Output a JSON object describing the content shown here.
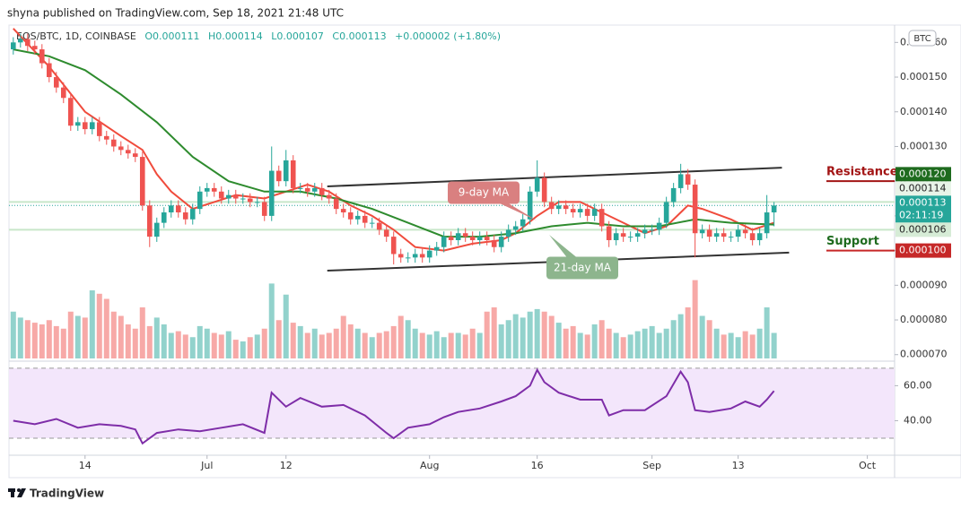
{
  "header": {
    "publisher": "shyna published on TradingView.com, Sep 18, 2021 21:48 UTC",
    "symbol": "EOS/BTC, 1D, COINBASE",
    "ohlc": [
      "O0.000111",
      "H0.000114",
      "L0.000107",
      "C0.000113"
    ],
    "change": "+0.000002 (+1.80%)",
    "currency": "BTC"
  },
  "footer": {
    "brand": "TradingView"
  },
  "chart_data": {
    "type": "candlestick",
    "up_color": "#26a69a",
    "down_color": "#ef5350",
    "xlim": [
      -0.6,
      122.8
    ],
    "xticks": [
      {
        "value": 10,
        "label": "14"
      },
      {
        "value": 27,
        "label": "Jul"
      },
      {
        "value": 38,
        "label": "12"
      },
      {
        "value": 58,
        "label": "Aug"
      },
      {
        "value": 73,
        "label": "16"
      },
      {
        "value": 89,
        "label": "Sep"
      },
      {
        "value": 101,
        "label": "13"
      },
      {
        "value": 119,
        "label": "Oct"
      }
    ],
    "ylim": [
      6.89e-05,
      0.0001637
    ],
    "yticks": [
      {
        "value": 7e-05,
        "label": "0.000070"
      },
      {
        "value": 8e-05,
        "label": "0.000080"
      },
      {
        "value": 9e-05,
        "label": "0.000090"
      },
      {
        "value": 0.0001,
        "label": "0.000100"
      },
      {
        "value": 0.00011,
        "label": "0.000110"
      },
      {
        "value": 0.00012,
        "label": "0.000120"
      },
      {
        "value": 0.00013,
        "label": "0.000130"
      },
      {
        "value": 0.00014,
        "label": "0.000140"
      },
      {
        "value": 0.00015,
        "label": "0.000150"
      },
      {
        "value": 0.00016,
        "label": "0.000160"
      }
    ],
    "open": [
      0.000158,
      0.00016,
      0.000161,
      0.000159,
      0.000158,
      0.000154,
      0.00015,
      0.000147,
      0.000144,
      0.000136,
      0.000137,
      0.000135,
      0.000137,
      0.000133,
      0.000132,
      0.00013,
      0.000129,
      0.000128,
      0.000127,
      0.000113,
      0.000104,
      0.000108,
      0.000111,
      0.000113,
      0.000111,
      0.000109,
      0.000112,
      0.000117,
      0.000118,
      0.000117,
      0.000115,
      0.000116,
      0.000115,
      0.000115,
      0.000114,
      0.000114,
      0.00011,
      0.000123,
      0.00012,
      0.000126,
      0.000118,
      0.000118,
      0.000117,
      0.000118,
      0.000116,
      0.000115,
      0.000112,
      0.000111,
      0.000109,
      0.00011,
      0.000108,
      0.000108,
      0.000106,
      0.000104,
      9.9e-05,
      9.8e-05,
      9.8e-05,
      9.9e-05,
      9.8e-05,
      0.0001,
      0.000101,
      0.000104,
      0.000103,
      0.000105,
      0.000104,
      0.000103,
      0.000104,
      0.000103,
      0.000101,
      0.000104,
      0.000106,
      0.000107,
      0.000109,
      0.000117,
      0.000121,
      0.000114,
      0.000112,
      0.000113,
      0.000112,
      0.000111,
      0.000112,
      0.00011,
      0.000112,
      0.000107,
      0.000103,
      0.000105,
      0.000104,
      0.000104,
      0.000105,
      0.000106,
      0.000106,
      0.000108,
      0.000114,
      0.000118,
      0.000122,
      0.000119,
      0.000105,
      0.000106,
      0.000104,
      0.000105,
      0.000104,
      0.000104,
      0.000106,
      0.000105,
      0.000103,
      0.000105,
      0.000111
    ],
    "high": [
      0.0001615,
      0.0001625,
      0.0001625,
      0.0001605,
      0.0001595,
      0.0001555,
      0.0001515,
      0.0001485,
      0.0001455,
      0.0001385,
      0.0001385,
      0.0001385,
      0.0001385,
      0.0001345,
      0.0001335,
      0.0001315,
      0.0001305,
      0.0001295,
      0.0001285,
      0.0001145,
      0.0001095,
      0.0001125,
      0.0001145,
      0.0001145,
      0.0001125,
      0.0001135,
      0.0001185,
      0.0001195,
      0.0001195,
      0.0001185,
      0.0001175,
      0.0001175,
      0.0001165,
      0.0001165,
      0.0001155,
      0.0001155,
      0.00013,
      0.0001245,
      0.000129,
      0.0001275,
      0.0001195,
      0.0001195,
      0.0001195,
      0.0001195,
      0.0001175,
      0.0001165,
      0.0001135,
      0.0001125,
      0.0001115,
      0.0001115,
      0.0001095,
      0.0001095,
      0.0001075,
      0.0001055,
      0.0001005,
      9.95e-05,
      0.0001005,
      0.0001005,
      0.0001015,
      0.0001025,
      0.0001055,
      0.0001055,
      0.0001065,
      0.0001065,
      0.0001055,
      0.0001055,
      0.0001055,
      0.0001045,
      0.0001055,
      0.0001075,
      0.0001085,
      0.0001105,
      0.0001185,
      0.000126,
      0.0001225,
      0.0001155,
      0.0001145,
      0.0001145,
      0.0001135,
      0.0001135,
      0.0001135,
      0.0001135,
      0.0001135,
      0.0001085,
      0.0001065,
      0.0001065,
      0.0001055,
      0.0001065,
      0.0001075,
      0.0001075,
      0.0001095,
      0.0001155,
      0.0001195,
      0.000125,
      0.0001235,
      0.0001205,
      0.0001075,
      0.0001075,
      0.0001065,
      0.0001065,
      0.0001055,
      0.0001075,
      0.0001075,
      0.0001065,
      0.0001065,
      0.000116,
      0.000114
    ],
    "low": [
      0.0001565,
      0.0001585,
      0.0001575,
      0.0001565,
      0.0001525,
      0.0001485,
      0.0001455,
      0.0001425,
      0.0001345,
      0.0001345,
      0.0001335,
      0.0001335,
      0.0001315,
      0.0001305,
      0.0001285,
      0.0001275,
      0.0001265,
      0.0001255,
      0.0001115,
      0.000101,
      0.0001025,
      0.0001065,
      0.0001095,
      0.0001095,
      0.0001075,
      0.0001075,
      0.0001105,
      0.0001155,
      0.0001155,
      0.0001135,
      0.0001135,
      0.0001135,
      0.0001135,
      0.0001125,
      0.0001125,
      0.0001085,
      0.0001085,
      0.0001185,
      0.0001185,
      0.0001165,
      0.0001165,
      0.0001155,
      0.0001155,
      0.0001145,
      0.0001135,
      0.0001105,
      0.0001095,
      0.0001075,
      0.0001075,
      0.0001065,
      0.0001065,
      0.0001045,
      0.0001025,
      9.6e-05,
      9.65e-05,
      9.65e-05,
      9.65e-05,
      9.65e-05,
      9.65e-05,
      9.85e-05,
      9.95e-05,
      0.0001015,
      0.0001015,
      0.0001025,
      0.0001015,
      0.0001015,
      0.0001015,
      9.95e-05,
      9.95e-05,
      0.0001025,
      0.0001045,
      0.0001055,
      0.0001075,
      0.0001155,
      0.0001125,
      0.0001105,
      0.0001105,
      0.0001105,
      0.0001095,
      0.0001095,
      0.0001085,
      0.0001085,
      0.0001055,
      0.000101,
      0.0001015,
      0.0001025,
      0.0001025,
      0.0001025,
      0.0001035,
      0.0001045,
      0.0001045,
      0.0001065,
      0.0001125,
      0.0001165,
      0.0001175,
      9.8e-05,
      0.0001035,
      0.0001025,
      0.0001025,
      0.0001025,
      0.0001025,
      0.0001025,
      0.0001035,
      0.0001015,
      0.0001015,
      0.0001035,
      0.000107
    ],
    "close": [
      0.00016,
      0.000161,
      0.000159,
      0.000158,
      0.000154,
      0.00015,
      0.000147,
      0.000144,
      0.000136,
      0.000137,
      0.000135,
      0.000137,
      0.000133,
      0.000132,
      0.00013,
      0.000129,
      0.000128,
      0.000127,
      0.000113,
      0.000104,
      0.000108,
      0.000111,
      0.000113,
      0.000111,
      0.000109,
      0.000112,
      0.000117,
      0.000118,
      0.000117,
      0.000115,
      0.000116,
      0.000115,
      0.000115,
      0.000114,
      0.000114,
      0.00011,
      0.000123,
      0.00012,
      0.000126,
      0.000118,
      0.000118,
      0.000117,
      0.000118,
      0.000116,
      0.000115,
      0.000112,
      0.000111,
      0.000109,
      0.00011,
      0.000108,
      0.000108,
      0.000106,
      0.000104,
      9.9e-05,
      9.8e-05,
      9.8e-05,
      9.9e-05,
      9.8e-05,
      0.0001,
      0.000101,
      0.000104,
      0.000103,
      0.000105,
      0.000104,
      0.000103,
      0.000104,
      0.000103,
      0.000101,
      0.000104,
      0.000106,
      0.000107,
      0.000109,
      0.000117,
      0.000121,
      0.000114,
      0.000112,
      0.000113,
      0.000112,
      0.000111,
      0.000112,
      0.00011,
      0.000112,
      0.000107,
      0.000103,
      0.000105,
      0.000104,
      0.000104,
      0.000105,
      0.000106,
      0.000106,
      0.000108,
      0.000114,
      0.000118,
      0.000122,
      0.000119,
      0.000105,
      0.000106,
      0.000104,
      0.000105,
      0.000104,
      0.000104,
      0.000106,
      0.000105,
      0.000103,
      0.000105,
      0.000111,
      0.000113
    ],
    "volume": {
      "ylim": [
        0,
        100
      ],
      "values": [
        55,
        48,
        45,
        42,
        40,
        45,
        38,
        35,
        55,
        50,
        48,
        80,
        76,
        70,
        55,
        50,
        40,
        35,
        60,
        38,
        48,
        40,
        30,
        32,
        28,
        25,
        38,
        35,
        30,
        28,
        32,
        22,
        20,
        25,
        28,
        35,
        88,
        45,
        75,
        42,
        38,
        30,
        35,
        28,
        30,
        35,
        50,
        40,
        35,
        30,
        25,
        30,
        32,
        38,
        50,
        45,
        35,
        30,
        28,
        32,
        25,
        30,
        30,
        28,
        35,
        30,
        55,
        60,
        40,
        45,
        52,
        48,
        55,
        58,
        55,
        50,
        42,
        35,
        38,
        30,
        28,
        40,
        45,
        35,
        30,
        25,
        28,
        32,
        35,
        38,
        30,
        35,
        45,
        52,
        60,
        92,
        50,
        45,
        35,
        28,
        30,
        25,
        32,
        28,
        35,
        60,
        30
      ]
    },
    "moving_averages": [
      {
        "name": "9-day MA",
        "color": "#f04b3c",
        "x": [
          0,
          5,
          10,
          15,
          18,
          20,
          22,
          25,
          28,
          31,
          35,
          38,
          41,
          44,
          47,
          50,
          53,
          56,
          60,
          64,
          68,
          70,
          73,
          76,
          79,
          82,
          85,
          88,
          91,
          94,
          96,
          100,
          103,
          106
        ],
        "values": [
          0.000164,
          0.000153,
          0.00014,
          0.000133,
          0.000129,
          0.000122,
          0.000117,
          0.000112,
          0.000114,
          0.000116,
          0.000115,
          0.000117,
          0.000119,
          0.000117,
          0.000113,
          0.00011,
          0.000106,
          0.000101,
          0.0001,
          0.000102,
          0.000103,
          0.000105,
          0.00011,
          0.000114,
          0.000114,
          0.000111,
          0.000108,
          0.000105,
          0.000107,
          0.000113,
          0.000112,
          0.000109,
          0.000106,
          0.000108
        ]
      },
      {
        "name": "21-day MA",
        "color": "#2e8b2e",
        "x": [
          0,
          5,
          10,
          15,
          20,
          25,
          30,
          35,
          40,
          45,
          50,
          55,
          60,
          65,
          70,
          75,
          80,
          85,
          90,
          95,
          100,
          106
        ],
        "values": [
          0.000158,
          0.000156,
          0.000152,
          0.000145,
          0.000137,
          0.000127,
          0.00012,
          0.000117,
          0.000117,
          0.000115,
          0.000112,
          0.000108,
          0.000104,
          0.000104,
          0.000105,
          0.000107,
          0.000108,
          0.000107,
          0.000107,
          0.000109,
          0.000108,
          0.0001075
        ]
      }
    ],
    "trendlines": [
      {
        "x": [
          43.75,
          107.1
        ],
        "y": [
          0.0001185,
          0.0001239
        ]
      },
      {
        "x": [
          43.75,
          108.1
        ],
        "y": [
          9.42e-05,
          9.94e-05
        ]
      }
    ],
    "levels": [
      {
        "label": "Resistance",
        "value": 0.00012,
        "value_label": "0.000120",
        "color": "#1e6b1e",
        "text_color": "#a31515"
      },
      {
        "label": "Support",
        "value": 0.0001,
        "value_label": "0.000100",
        "color": "#c62828",
        "text_color": "#1e6b1e"
      }
    ],
    "price_labels": [
      {
        "value": 0.000114,
        "label": "0.000114",
        "color": "#e8f4e8"
      },
      {
        "value": 0.000113,
        "label": "0.000113",
        "countdown": "02:11:19",
        "color": "#26a69a"
      },
      {
        "value": 0.000106,
        "label": "0.000106",
        "color": "#d6ecd6"
      }
    ],
    "rsi": {
      "color": "#7e2da8",
      "ylim": [
        9,
        73
      ],
      "bands": [
        30,
        70
      ],
      "yticks": [
        {
          "value": 40,
          "label": "40.00"
        },
        {
          "value": 60,
          "label": "60.00"
        }
      ],
      "x": [
        0,
        3,
        6,
        9,
        12,
        15,
        17,
        18,
        20,
        23,
        26,
        29,
        32,
        35,
        36,
        38,
        40,
        43,
        46,
        49,
        52,
        53,
        55,
        58,
        60,
        62,
        65,
        68,
        70,
        72,
        73,
        74,
        76,
        79,
        82,
        83,
        85,
        88,
        91,
        93,
        94,
        95,
        97,
        100,
        102,
        104,
        105,
        106
      ],
      "values": [
        40,
        38,
        41,
        36,
        38,
        37,
        35,
        27,
        33,
        35,
        34,
        36,
        38,
        33,
        56,
        48,
        53,
        48,
        49,
        43,
        33,
        30,
        36,
        38,
        42,
        45,
        47,
        51,
        54,
        60,
        69,
        62,
        56,
        52,
        52,
        43,
        46,
        46,
        54,
        68,
        62,
        46,
        45,
        47,
        51,
        48,
        52,
        57
      ]
    }
  }
}
